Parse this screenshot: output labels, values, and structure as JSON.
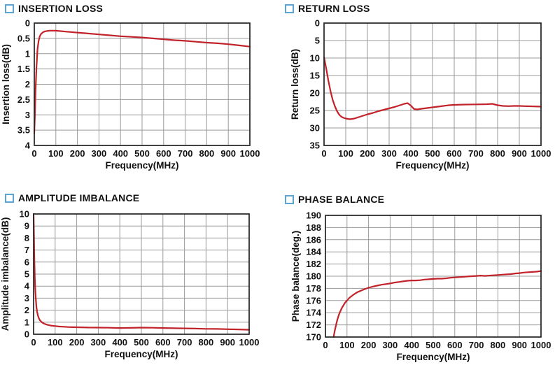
{
  "accent_colors": {
    "curve_red": "#c2232a",
    "grid_gray": "#9a9a9a",
    "frame_black": "#222222",
    "title_square_blue": "#58a5d6",
    "text_black": "#111111"
  },
  "chart_data": [
    {
      "type": "line",
      "title": "INSERTION LOSS",
      "xlabel": "Frequency(MHz)",
      "ylabel": "Insertion loss(dB)",
      "x_range": [
        0,
        1000
      ],
      "y_range": [
        0,
        4
      ],
      "y_inverted": true,
      "grid": true,
      "legend": "none",
      "x_ticks": [
        0,
        100,
        200,
        300,
        400,
        500,
        600,
        700,
        800,
        900,
        1000
      ],
      "y_ticks": [
        0,
        0.5,
        1,
        1.5,
        2,
        2.5,
        3,
        3.5,
        4
      ],
      "points": [
        [
          0,
          3.6
        ],
        [
          3,
          3.0
        ],
        [
          6,
          2.2
        ],
        [
          10,
          1.45
        ],
        [
          15,
          0.85
        ],
        [
          20,
          0.58
        ],
        [
          25,
          0.44
        ],
        [
          30,
          0.37
        ],
        [
          40,
          0.3
        ],
        [
          50,
          0.27
        ],
        [
          70,
          0.25
        ],
        [
          100,
          0.25
        ],
        [
          150,
          0.28
        ],
        [
          200,
          0.31
        ],
        [
          250,
          0.34
        ],
        [
          300,
          0.37
        ],
        [
          350,
          0.4
        ],
        [
          400,
          0.43
        ],
        [
          450,
          0.45
        ],
        [
          500,
          0.47
        ],
        [
          550,
          0.5
        ],
        [
          600,
          0.53
        ],
        [
          650,
          0.56
        ],
        [
          700,
          0.58
        ],
        [
          750,
          0.61
        ],
        [
          800,
          0.64
        ],
        [
          850,
          0.66
        ],
        [
          900,
          0.69
        ],
        [
          950,
          0.73
        ],
        [
          1000,
          0.77
        ]
      ]
    },
    {
      "type": "line",
      "title": "RETURN LOSS",
      "xlabel": "Frequency(MHz)",
      "ylabel": "Return loss(dB)",
      "x_range": [
        0,
        1000
      ],
      "y_range": [
        0,
        35
      ],
      "y_inverted": true,
      "grid": true,
      "legend": "none",
      "x_ticks": [
        0,
        100,
        200,
        300,
        400,
        500,
        600,
        700,
        800,
        900,
        1000
      ],
      "y_ticks": [
        0,
        5,
        10,
        15,
        20,
        25,
        30,
        35
      ],
      "points": [
        [
          0,
          9.8
        ],
        [
          10,
          13.0
        ],
        [
          20,
          16.5
        ],
        [
          30,
          19.5
        ],
        [
          40,
          22.0
        ],
        [
          50,
          23.8
        ],
        [
          60,
          25.2
        ],
        [
          70,
          26.2
        ],
        [
          80,
          26.8
        ],
        [
          90,
          27.1
        ],
        [
          100,
          27.3
        ],
        [
          110,
          27.4
        ],
        [
          120,
          27.5
        ],
        [
          130,
          27.4
        ],
        [
          140,
          27.3
        ],
        [
          150,
          27.1
        ],
        [
          160,
          26.9
        ],
        [
          180,
          26.5
        ],
        [
          200,
          26.1
        ],
        [
          225,
          25.7
        ],
        [
          250,
          25.2
        ],
        [
          275,
          24.8
        ],
        [
          300,
          24.4
        ],
        [
          325,
          24.0
        ],
        [
          350,
          23.5
        ],
        [
          370,
          23.1
        ],
        [
          385,
          22.9
        ],
        [
          400,
          23.6
        ],
        [
          415,
          24.6
        ],
        [
          430,
          24.7
        ],
        [
          450,
          24.5
        ],
        [
          475,
          24.3
        ],
        [
          500,
          24.1
        ],
        [
          525,
          23.9
        ],
        [
          550,
          23.7
        ],
        [
          575,
          23.5
        ],
        [
          600,
          23.4
        ],
        [
          650,
          23.3
        ],
        [
          700,
          23.25
        ],
        [
          750,
          23.2
        ],
        [
          775,
          23.1
        ],
        [
          800,
          23.5
        ],
        [
          825,
          23.7
        ],
        [
          850,
          23.75
        ],
        [
          875,
          23.7
        ],
        [
          900,
          23.7
        ],
        [
          925,
          23.75
        ],
        [
          950,
          23.8
        ],
        [
          1000,
          23.9
        ]
      ]
    },
    {
      "type": "line",
      "title": "AMPLITUDE IMBALANCE",
      "xlabel": "Frequency(MHz)",
      "ylabel": "Amplitude imbalance(dB)",
      "x_range": [
        0,
        1000
      ],
      "y_range": [
        0,
        10
      ],
      "y_inverted": false,
      "grid": true,
      "legend": "none",
      "x_ticks": [
        0,
        100,
        200,
        300,
        400,
        500,
        600,
        700,
        800,
        900,
        1000
      ],
      "y_ticks": [
        0,
        1,
        2,
        3,
        4,
        5,
        6,
        7,
        8,
        9,
        10
      ],
      "points": [
        [
          0,
          10
        ],
        [
          2,
          8.0
        ],
        [
          4,
          6.0
        ],
        [
          6,
          4.6
        ],
        [
          8,
          3.6
        ],
        [
          10,
          3.0
        ],
        [
          13,
          2.3
        ],
        [
          16,
          1.9
        ],
        [
          20,
          1.55
        ],
        [
          25,
          1.3
        ],
        [
          30,
          1.15
        ],
        [
          35,
          1.05
        ],
        [
          40,
          0.97
        ],
        [
          50,
          0.87
        ],
        [
          60,
          0.8
        ],
        [
          70,
          0.76
        ],
        [
          80,
          0.72
        ],
        [
          90,
          0.7
        ],
        [
          100,
          0.68
        ],
        [
          120,
          0.64
        ],
        [
          140,
          0.62
        ],
        [
          160,
          0.6
        ],
        [
          180,
          0.59
        ],
        [
          200,
          0.58
        ],
        [
          250,
          0.56
        ],
        [
          300,
          0.55
        ],
        [
          350,
          0.54
        ],
        [
          400,
          0.52
        ],
        [
          450,
          0.53
        ],
        [
          500,
          0.55
        ],
        [
          550,
          0.54
        ],
        [
          600,
          0.52
        ],
        [
          650,
          0.5
        ],
        [
          700,
          0.49
        ],
        [
          750,
          0.47
        ],
        [
          800,
          0.45
        ],
        [
          850,
          0.44
        ],
        [
          900,
          0.42
        ],
        [
          950,
          0.4
        ],
        [
          1000,
          0.37
        ]
      ]
    },
    {
      "type": "line",
      "title": "PHASE BALANCE",
      "xlabel": "Frequency(MHz)",
      "ylabel": "Phase balance(deg.)",
      "x_range": [
        0,
        1000
      ],
      "y_range": [
        170,
        190
      ],
      "y_inverted": false,
      "grid": true,
      "legend": "none",
      "x_ticks": [
        0,
        100,
        200,
        300,
        400,
        500,
        600,
        700,
        800,
        900,
        1000
      ],
      "y_ticks": [
        170,
        172,
        174,
        176,
        178,
        180,
        182,
        184,
        186,
        188,
        190
      ],
      "points": [
        [
          38,
          170.0
        ],
        [
          42,
          170.8
        ],
        [
          46,
          171.5
        ],
        [
          50,
          172.1
        ],
        [
          55,
          172.8
        ],
        [
          60,
          173.4
        ],
        [
          65,
          173.9
        ],
        [
          70,
          174.3
        ],
        [
          75,
          174.7
        ],
        [
          80,
          175.0
        ],
        [
          85,
          175.3
        ],
        [
          90,
          175.6
        ],
        [
          95,
          175.8
        ],
        [
          100,
          176.0
        ],
        [
          110,
          176.4
        ],
        [
          120,
          176.7
        ],
        [
          130,
          176.95
        ],
        [
          140,
          177.2
        ],
        [
          150,
          177.4
        ],
        [
          160,
          177.55
        ],
        [
          170,
          177.7
        ],
        [
          180,
          177.85
        ],
        [
          200,
          178.1
        ],
        [
          220,
          178.3
        ],
        [
          240,
          178.45
        ],
        [
          260,
          178.6
        ],
        [
          280,
          178.7
        ],
        [
          300,
          178.8
        ],
        [
          320,
          178.95
        ],
        [
          340,
          179.05
        ],
        [
          360,
          179.15
        ],
        [
          380,
          179.25
        ],
        [
          400,
          179.3
        ],
        [
          420,
          179.3
        ],
        [
          440,
          179.35
        ],
        [
          460,
          179.45
        ],
        [
          480,
          179.5
        ],
        [
          500,
          179.55
        ],
        [
          520,
          179.6
        ],
        [
          540,
          179.6
        ],
        [
          560,
          179.65
        ],
        [
          580,
          179.75
        ],
        [
          600,
          179.8
        ],
        [
          620,
          179.85
        ],
        [
          640,
          179.9
        ],
        [
          660,
          179.95
        ],
        [
          680,
          180.0
        ],
        [
          700,
          180.05
        ],
        [
          720,
          180.1
        ],
        [
          740,
          180.05
        ],
        [
          760,
          180.1
        ],
        [
          780,
          180.15
        ],
        [
          800,
          180.2
        ],
        [
          820,
          180.25
        ],
        [
          840,
          180.3
        ],
        [
          860,
          180.35
        ],
        [
          880,
          180.45
        ],
        [
          900,
          180.5
        ],
        [
          920,
          180.6
        ],
        [
          940,
          180.65
        ],
        [
          960,
          180.7
        ],
        [
          980,
          180.75
        ],
        [
          1000,
          180.85
        ]
      ]
    }
  ]
}
